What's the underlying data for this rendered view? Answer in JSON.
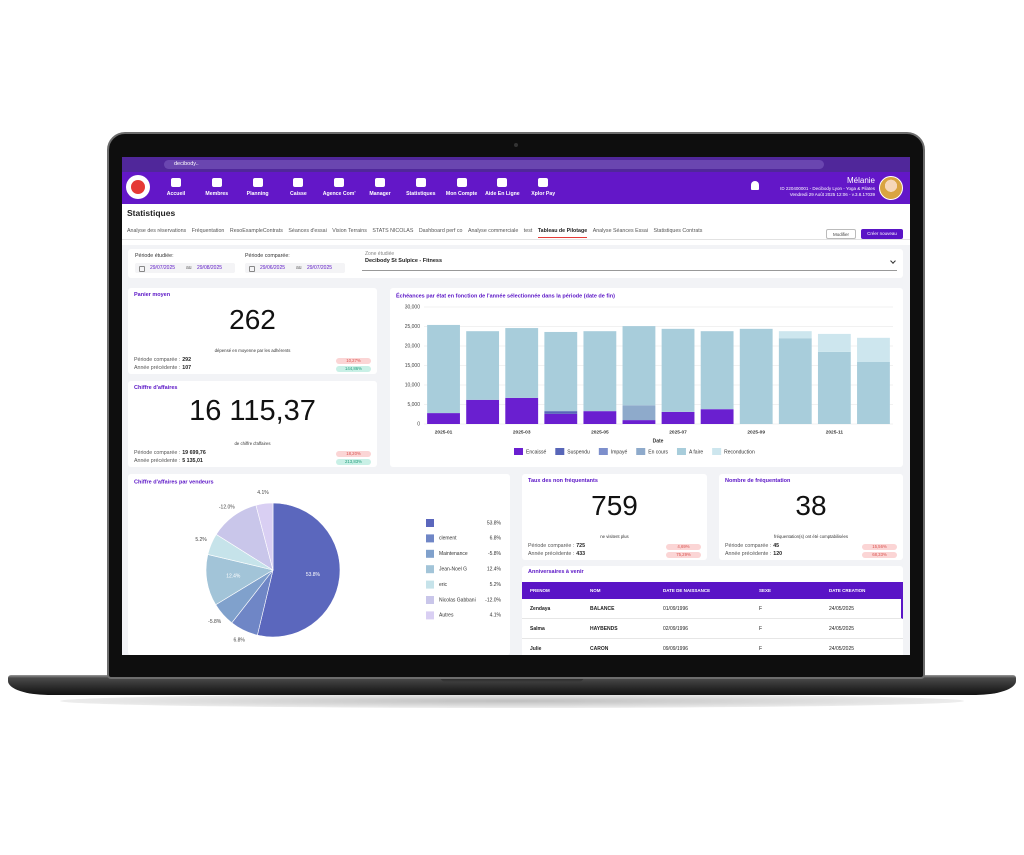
{
  "browser": {
    "url": "decibody.."
  },
  "nav": {
    "items": [
      "Accueil",
      "Membres",
      "Planning",
      "Caisse",
      "Agence Com'",
      "Manager",
      "Statistiques",
      "Mon Compte",
      "Aide En Ligne",
      "Xplor Pay"
    ],
    "user": {
      "name": "Mélanie",
      "account": "ID 220400001 - Decibody Lyon - Yoga & Pilates",
      "date": "Vendredi 29 Août 2025 12:06 - v.3.8.17039"
    }
  },
  "page": {
    "title": "Statistiques",
    "tabs": [
      "Analyse des réservations",
      "Fréquentation",
      "ResoExampleContrats",
      "Séances d'essai",
      "Vision Terrains",
      "STATS NICOLAS",
      "Dashboard perf co",
      "Analyse commerciale",
      "test",
      "Tableau de Pilotage",
      "Analyse Séances Essai",
      "Statistiques Contrats"
    ],
    "active_tab": 9,
    "buttons": [
      "Modifier",
      "Créer nouveau"
    ]
  },
  "filters": {
    "studied": {
      "label": "Période étudiée:",
      "from": "29/07/2025",
      "to_word": "au",
      "to": "29/08/2025"
    },
    "compared": {
      "label": "Période comparée:",
      "from": "29/06/2025",
      "to_word": "au",
      "to": "29/07/2025"
    },
    "zone": {
      "label": "Zone étudiée",
      "value": "Decibody St Sulpice - Fitness"
    }
  },
  "kpis": [
    {
      "title": "Panier moyen",
      "value": "262",
      "caption": "dépensé en moyenne par les adhérents",
      "compared": {
        "label": "Période comparée :",
        "value": "292",
        "change": "10,27%",
        "trend": "down"
      },
      "previous": {
        "label": "Année précédente :",
        "value": "107",
        "change": "144,86%",
        "trend": "up"
      }
    },
    {
      "title": "Chiffre d'affaires",
      "value": "16 115,37",
      "caption": "de chiffre d'affaires",
      "compared": {
        "label": "Période comparée :",
        "value": "19 699,76",
        "change": "18,20%",
        "trend": "down"
      },
      "previous": {
        "label": "Année précédente :",
        "value": "5 135,01",
        "change": "213,83%",
        "trend": "up"
      }
    },
    {
      "title": "Taux des non fréquentants",
      "value": "759",
      "caption": "ne visitent plus",
      "compared": {
        "label": "Période comparée :",
        "value": "725",
        "change": "4,69%",
        "trend": "down"
      },
      "previous": {
        "label": "Année précédente :",
        "value": "433",
        "change": "75,29%",
        "trend": "down"
      }
    },
    {
      "title": "Nombre de fréquentation",
      "value": "38",
      "caption": "fréquentation(s) ont été comptabilisées",
      "compared": {
        "label": "Période comparée :",
        "value": "45",
        "change": "15,56%",
        "trend": "down"
      },
      "previous": {
        "label": "Année précédente :",
        "value": "120",
        "change": "68,33%",
        "trend": "down"
      }
    }
  ],
  "birthdays": {
    "title": "Anniversaires à venir",
    "columns": [
      "PRENOM",
      "NOM",
      "DATE DE NAISSANCE",
      "SEXE",
      "DATE CREATION"
    ],
    "rows": [
      [
        "Zendaya",
        "BALANCE",
        "01/09/1996",
        "F",
        "24/05/2025"
      ],
      [
        "Salma",
        "HAYBENDS",
        "02/09/1996",
        "F",
        "24/05/2025"
      ],
      [
        "Julie",
        "CARON",
        "09/09/1996",
        "F",
        "24/05/2025"
      ]
    ]
  },
  "chart_data": [
    {
      "type": "bar",
      "stacked": true,
      "title": "Échéances par état en fonction de l'année sélectionnée dans la période (date de fin)",
      "xlabel": "Date",
      "categories": [
        "2025-01",
        null,
        "2025-03",
        null,
        "2025-05",
        null,
        "2025-07",
        null,
        "2025-09",
        null,
        "2025-11",
        null
      ],
      "ylim": [
        0,
        30000
      ],
      "yticks": [
        0,
        {
          "value": 5000,
          "label": "5,000"
        },
        {
          "value": 10000,
          "label": "10,000"
        },
        {
          "value": 15000,
          "label": "15,000"
        },
        {
          "value": 20000,
          "label": "20,000"
        },
        {
          "value": 25000,
          "label": "25,000"
        },
        {
          "value": 30000,
          "label": "30,000"
        }
      ],
      "grid": true,
      "series": [
        {
          "name": "Encaissé",
          "color": "#6a1fd0",
          "values": [
            2800,
            6200,
            6700,
            2600,
            3300,
            1000,
            3100,
            3800,
            0,
            0,
            0,
            0
          ]
        },
        {
          "name": "Suspendu",
          "color": "#5866b8",
          "values": [
            0,
            0,
            0,
            700,
            0,
            0,
            0,
            0,
            0,
            0,
            0,
            0
          ]
        },
        {
          "name": "Impayé",
          "color": "#7d8fcc",
          "values": [
            0,
            0,
            0,
            0,
            0,
            0,
            0,
            0,
            0,
            0,
            0,
            0
          ]
        },
        {
          "name": "En cours",
          "color": "#8eaacb",
          "values": [
            0,
            0,
            0,
            0,
            0,
            3800,
            0,
            0,
            0,
            0,
            0,
            0
          ]
        },
        {
          "name": "A faire",
          "color": "#a8cddb",
          "values": [
            22600,
            17600,
            17900,
            20300,
            20500,
            20300,
            21300,
            20000,
            24400,
            22000,
            18500,
            15900
          ]
        },
        {
          "name": "Reconduction",
          "color": "#cde6ee",
          "values": [
            0,
            0,
            0,
            0,
            0,
            0,
            0,
            0,
            0,
            1800,
            4600,
            6200
          ]
        }
      ]
    },
    {
      "type": "pie",
      "title": "Chiffre d'affaires par vendeurs",
      "categories": [
        null,
        "clement",
        "Maintenance",
        "Jean-Noel G",
        "eric",
        "Nicolas Gabbani",
        "Autres"
      ],
      "values": [
        53.8,
        6.8,
        -5.8,
        12.4,
        5.2,
        -12.0,
        4.1
      ],
      "value_labels": [
        "53.8%",
        "6.8%",
        "-5.8%",
        "12.4%",
        "5.2%",
        "-12.0%",
        "4.1%"
      ],
      "colors": [
        "#5b67bd",
        "#6f86c6",
        "#80a1cc",
        "#a2c4d8",
        "#c6e3ea",
        "#c9c6ea",
        "#d9cff3"
      ]
    }
  ]
}
